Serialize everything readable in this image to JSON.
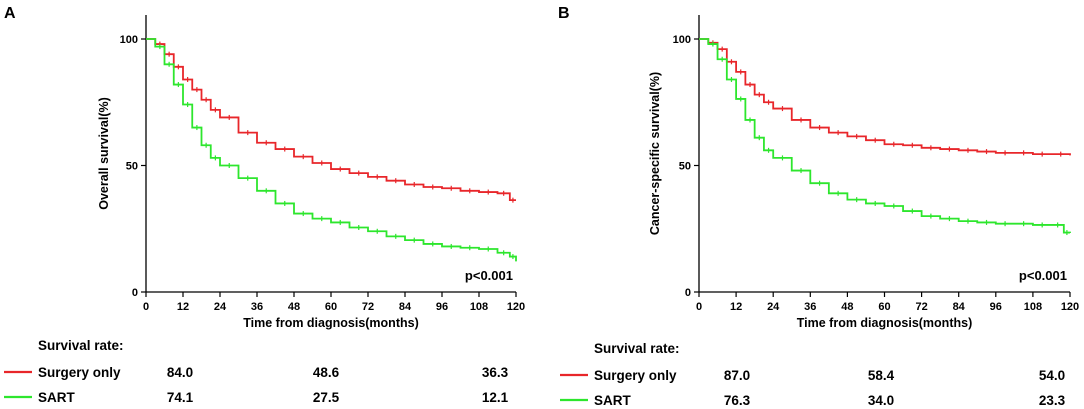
{
  "chart_data": [
    {
      "panel": "A",
      "type": "line",
      "subtype": "kaplan-meier",
      "xlabel": "Time from diagnosis(months)",
      "ylabel": "Overall survival(%)",
      "xlim": [
        0,
        120
      ],
      "ylim": [
        0,
        100
      ],
      "xticks": [
        0,
        12,
        24,
        36,
        48,
        60,
        72,
        84,
        96,
        108,
        120
      ],
      "yticks": [
        0,
        50,
        100
      ],
      "pvalue": "p<0.001",
      "series": [
        {
          "name": "Surgery only",
          "color": "#e8262a",
          "x": [
            0,
            3,
            6,
            9,
            12,
            15,
            18,
            21,
            24,
            30,
            36,
            42,
            48,
            54,
            60,
            66,
            72,
            78,
            84,
            90,
            96,
            102,
            108,
            114,
            118,
            120
          ],
          "y": [
            100,
            98,
            94,
            89,
            84,
            80,
            76,
            72,
            69,
            63,
            59,
            56.5,
            53.5,
            51,
            48.6,
            47,
            45.5,
            44,
            42.5,
            41.5,
            41,
            40,
            39.5,
            39,
            36.3,
            36.3
          ]
        },
        {
          "name": "SART",
          "color": "#2de62d",
          "x": [
            0,
            3,
            6,
            9,
            12,
            15,
            18,
            21,
            24,
            30,
            36,
            42,
            48,
            54,
            60,
            66,
            72,
            78,
            84,
            90,
            96,
            102,
            108,
            114,
            118,
            120
          ],
          "y": [
            100,
            97,
            90,
            82,
            74.1,
            65,
            58,
            53,
            50,
            45,
            40,
            35,
            31,
            29,
            27.5,
            25.5,
            24,
            22,
            20.5,
            19,
            18,
            17.5,
            17,
            15.5,
            14,
            12.1
          ]
        }
      ],
      "table": {
        "header": "Survival rate:",
        "rows": [
          {
            "name": "Surgery only",
            "color": "#e8262a",
            "values": [
              "84.0",
              "48.6",
              "36.3"
            ]
          },
          {
            "name": "SART",
            "color": "#2de62d",
            "values": [
              "74.1",
              "27.5",
              "12.1"
            ]
          }
        ]
      }
    },
    {
      "panel": "B",
      "type": "line",
      "subtype": "kaplan-meier",
      "xlabel": "Time from diagnosis(months)",
      "ylabel": "Cancer-specific survival(%)",
      "xlim": [
        0,
        120
      ],
      "ylim": [
        0,
        100
      ],
      "xticks": [
        0,
        12,
        24,
        36,
        48,
        60,
        72,
        84,
        96,
        108,
        120
      ],
      "yticks": [
        0,
        50,
        100
      ],
      "pvalue": "p<0.001",
      "series": [
        {
          "name": "Surgery only",
          "color": "#e8262a",
          "x": [
            0,
            3,
            6,
            9,
            12,
            15,
            18,
            21,
            24,
            30,
            36,
            42,
            48,
            54,
            60,
            66,
            72,
            78,
            84,
            90,
            96,
            102,
            108,
            114,
            120
          ],
          "y": [
            100,
            98.5,
            96,
            91,
            87,
            82,
            78,
            75,
            72.5,
            68,
            65,
            63,
            61.5,
            60,
            58.4,
            58,
            57,
            56.5,
            56,
            55.5,
            55,
            55,
            54.5,
            54.5,
            54
          ]
        },
        {
          "name": "SART",
          "color": "#2de62d",
          "x": [
            0,
            3,
            6,
            9,
            12,
            15,
            18,
            21,
            24,
            30,
            36,
            42,
            48,
            54,
            60,
            66,
            72,
            78,
            84,
            90,
            96,
            102,
            108,
            114,
            118,
            120
          ],
          "y": [
            100,
            98,
            92,
            84,
            76.3,
            68,
            61,
            56,
            53,
            48,
            43,
            39,
            36.5,
            35,
            34,
            32,
            30,
            29,
            28,
            27.5,
            27,
            27,
            26.5,
            26.5,
            23.5,
            23.3
          ]
        }
      ],
      "table": {
        "header": "Survival rate:",
        "rows": [
          {
            "name": "Surgery only",
            "color": "#e8262a",
            "values": [
              "87.0",
              "58.4",
              "54.0"
            ]
          },
          {
            "name": "SART",
            "color": "#2de62d",
            "values": [
              "76.3",
              "34.0",
              "23.3"
            ]
          }
        ]
      }
    }
  ]
}
